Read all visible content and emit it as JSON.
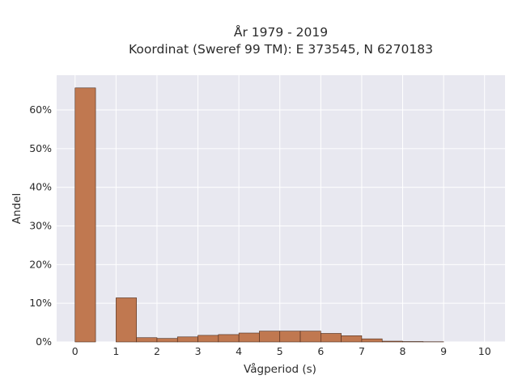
{
  "chart_data": {
    "type": "bar",
    "title_line1": "År 1979 - 2019",
    "title_line2": "Koordinat (Sweref 99 TM): E 373545, N 6270183",
    "xlabel": "Vågperiod (s)",
    "ylabel": "Andel",
    "xlim": [
      -0.45,
      10.5
    ],
    "ylim": [
      0,
      69
    ],
    "x_ticks": [
      0,
      1,
      2,
      3,
      4,
      5,
      6,
      7,
      8,
      9,
      10
    ],
    "y_ticks": [
      0,
      10,
      20,
      30,
      40,
      50,
      60
    ],
    "y_tick_labels": [
      "0%",
      "10%",
      "20%",
      "30%",
      "40%",
      "50%",
      "60%"
    ],
    "grid": true,
    "bin_width": 0.5,
    "bins": [
      {
        "x": 0.0,
        "value": 65.7
      },
      {
        "x": 0.5,
        "value": 0.0
      },
      {
        "x": 1.0,
        "value": 11.4
      },
      {
        "x": 1.5,
        "value": 1.1
      },
      {
        "x": 2.0,
        "value": 0.9
      },
      {
        "x": 2.5,
        "value": 1.3
      },
      {
        "x": 3.0,
        "value": 1.7
      },
      {
        "x": 3.5,
        "value": 1.9
      },
      {
        "x": 4.0,
        "value": 2.3
      },
      {
        "x": 4.5,
        "value": 2.8
      },
      {
        "x": 5.0,
        "value": 2.8
      },
      {
        "x": 5.5,
        "value": 2.8
      },
      {
        "x": 6.0,
        "value": 2.2
      },
      {
        "x": 6.5,
        "value": 1.6
      },
      {
        "x": 7.0,
        "value": 0.8
      },
      {
        "x": 7.5,
        "value": 0.2
      },
      {
        "x": 8.0,
        "value": 0.1
      },
      {
        "x": 8.5,
        "value": 0.05
      }
    ],
    "colors": {
      "bar_fill": "#c07850",
      "bar_stroke": "#4a2a1a",
      "plot_bg": "#e8e8f0",
      "grid": "#ffffff"
    }
  }
}
